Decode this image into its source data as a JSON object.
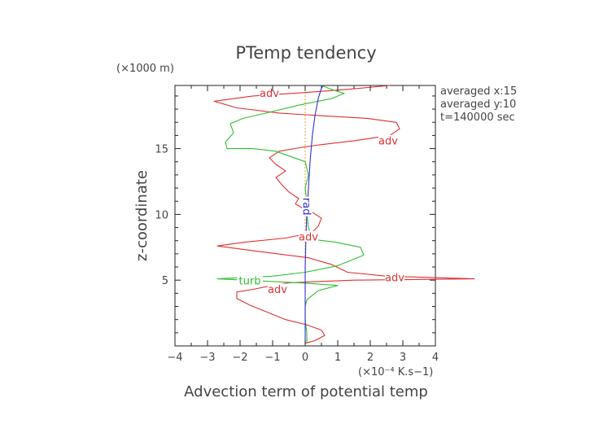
{
  "chart_data": {
    "type": "line",
    "title": "PTemp tendency",
    "xlabel": "Advection term of potential temp",
    "ylabel": "z-coordinate",
    "x_unit": "(×10⁻⁴ K.s−1)",
    "y_unit": "(×1000 m)",
    "xlim": [
      -4,
      4
    ],
    "ylim": [
      0,
      19.8
    ],
    "xticks": [
      "−4",
      "−3",
      "−2",
      "−1",
      "0",
      "1",
      "2",
      "3",
      "4"
    ],
    "yticks": [
      "5",
      "10",
      "15"
    ],
    "grid": false,
    "annotations": [
      "averaged  x:15",
      "averaged  y:10",
      "t=140000 sec"
    ],
    "series": [
      {
        "name": "adv",
        "color": "#e03030",
        "points": [
          [
            0.0,
            0.2
          ],
          [
            0.3,
            0.4
          ],
          [
            0.6,
            0.8
          ],
          [
            0.5,
            1.2
          ],
          [
            0.05,
            1.6
          ],
          [
            -0.6,
            2.0
          ],
          [
            -1.2,
            2.6
          ],
          [
            -1.7,
            3.1
          ],
          [
            -2.1,
            3.6
          ],
          [
            -2.1,
            4.1
          ],
          [
            -1.6,
            4.3
          ],
          [
            -1.0,
            4.6
          ],
          [
            -0.5,
            4.8
          ],
          [
            1.5,
            5.0
          ],
          [
            5.2,
            5.1
          ],
          [
            2.5,
            5.3
          ],
          [
            1.3,
            5.6
          ],
          [
            0.8,
            6.2
          ],
          [
            0.1,
            6.7
          ],
          [
            -1.5,
            7.2
          ],
          [
            -2.7,
            7.6
          ],
          [
            -1.8,
            7.9
          ],
          [
            -0.6,
            8.2
          ],
          [
            0.2,
            8.6
          ],
          [
            0.4,
            9.1
          ],
          [
            0.5,
            9.7
          ],
          [
            0.2,
            10.2
          ],
          [
            -0.1,
            10.5
          ],
          [
            -0.3,
            10.8
          ],
          [
            -0.2,
            11.2
          ],
          [
            -0.5,
            11.7
          ],
          [
            -0.7,
            12.2
          ],
          [
            -0.9,
            12.8
          ],
          [
            -0.6,
            13.3
          ],
          [
            -0.9,
            13.8
          ],
          [
            -1.1,
            14.3
          ],
          [
            -0.8,
            14.8
          ],
          [
            -0.1,
            15.1
          ],
          [
            0.5,
            15.3
          ],
          [
            1.5,
            15.6
          ],
          [
            2.6,
            16.0
          ],
          [
            2.9,
            16.5
          ],
          [
            2.8,
            17.0
          ],
          [
            1.9,
            17.3
          ],
          [
            0.5,
            17.5
          ],
          [
            -0.8,
            17.7
          ],
          [
            -2.1,
            18.1
          ],
          [
            -2.8,
            18.6
          ],
          [
            -1.6,
            19.0
          ],
          [
            0.2,
            19.3
          ],
          [
            1.3,
            19.5
          ],
          [
            2.6,
            19.8
          ]
        ]
      },
      {
        "name": "turb",
        "color": "#30c030",
        "points": [
          [
            0.05,
            0.2
          ],
          [
            0.05,
            1.0
          ],
          [
            0.0,
            2.0
          ],
          [
            0.0,
            3.0
          ],
          [
            0.05,
            3.5
          ],
          [
            0.4,
            4.2
          ],
          [
            1.0,
            4.6
          ],
          [
            -0.2,
            4.8
          ],
          [
            -2.7,
            5.1
          ],
          [
            -1.0,
            5.3
          ],
          [
            0.0,
            5.6
          ],
          [
            1.0,
            6.1
          ],
          [
            1.8,
            6.9
          ],
          [
            1.7,
            7.5
          ],
          [
            0.9,
            7.9
          ],
          [
            0.2,
            8.1
          ],
          [
            0.1,
            9.0
          ],
          [
            0.05,
            10.0
          ],
          [
            0.05,
            11.0
          ],
          [
            0.0,
            12.0
          ],
          [
            0.1,
            13.0
          ],
          [
            0.0,
            14.0
          ],
          [
            -0.9,
            14.8
          ],
          [
            -1.6,
            15.0
          ],
          [
            -2.4,
            15.0
          ],
          [
            -2.45,
            15.5
          ],
          [
            -2.2,
            16.2
          ],
          [
            -2.3,
            16.9
          ],
          [
            -1.9,
            17.3
          ],
          [
            -1.2,
            17.7
          ],
          [
            -0.2,
            18.3
          ],
          [
            0.8,
            18.8
          ],
          [
            1.2,
            19.2
          ],
          [
            0.8,
            19.5
          ],
          [
            0.5,
            19.8
          ]
        ]
      },
      {
        "name": "rad",
        "color": "#3030d0",
        "points": [
          [
            0.0,
            0.2
          ],
          [
            0.0,
            2.0
          ],
          [
            0.0,
            4.0
          ],
          [
            0.0,
            6.0
          ],
          [
            0.02,
            8.0
          ],
          [
            0.05,
            10.0
          ],
          [
            0.1,
            12.0
          ],
          [
            0.15,
            14.0
          ],
          [
            0.22,
            16.0
          ],
          [
            0.3,
            17.5
          ],
          [
            0.4,
            18.8
          ],
          [
            0.5,
            19.6
          ],
          [
            0.55,
            19.8
          ]
        ]
      }
    ],
    "series_labels": [
      {
        "series": "adv",
        "text": "adv",
        "x": -1.1,
        "y": 19.2
      },
      {
        "series": "adv",
        "text": "adv",
        "x": 2.55,
        "y": 15.6
      },
      {
        "series": "adv",
        "text": "adv",
        "x": 0.1,
        "y": 8.3
      },
      {
        "series": "adv",
        "text": "adv",
        "x": 2.75,
        "y": 5.2
      },
      {
        "series": "adv",
        "text": "adv",
        "x": -0.85,
        "y": 4.3
      },
      {
        "series": "turb",
        "text": "turb",
        "x": -1.7,
        "y": 4.95
      },
      {
        "series": "rad",
        "text": "rad",
        "x": 0.05,
        "y": 10.6,
        "rotate": 90
      }
    ]
  }
}
